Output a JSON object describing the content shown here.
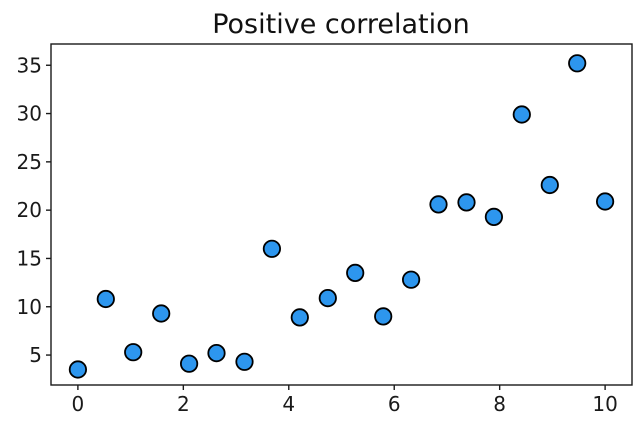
{
  "chart_data": {
    "type": "scatter",
    "title": "Positive correlation",
    "xlabel": "",
    "ylabel": "",
    "x": [
      0.0,
      0.53,
      1.05,
      1.58,
      2.11,
      2.63,
      3.16,
      3.68,
      4.21,
      4.74,
      5.26,
      5.79,
      6.32,
      6.84,
      7.37,
      7.89,
      8.42,
      8.95,
      9.47,
      10.0
    ],
    "y": [
      3.5,
      10.8,
      5.3,
      9.3,
      4.1,
      5.2,
      4.3,
      16.0,
      8.9,
      10.9,
      13.5,
      9.0,
      12.8,
      20.6,
      20.8,
      19.3,
      29.9,
      22.6,
      35.2,
      20.9
    ],
    "point_count": 20,
    "xlim": [
      -0.51,
      10.51
    ],
    "ylim": [
      1.9,
      37.2
    ],
    "xticks": [
      0,
      2,
      4,
      6,
      8,
      10
    ],
    "yticks": [
      5,
      10,
      15,
      20,
      25,
      30,
      35
    ],
    "grid": false,
    "legend": false,
    "colors": {
      "marker_fill": "#2D96EE",
      "marker_edge": "#000000",
      "axis": "#1a1a1a",
      "text": "#111111",
      "background": "#ffffff"
    }
  }
}
